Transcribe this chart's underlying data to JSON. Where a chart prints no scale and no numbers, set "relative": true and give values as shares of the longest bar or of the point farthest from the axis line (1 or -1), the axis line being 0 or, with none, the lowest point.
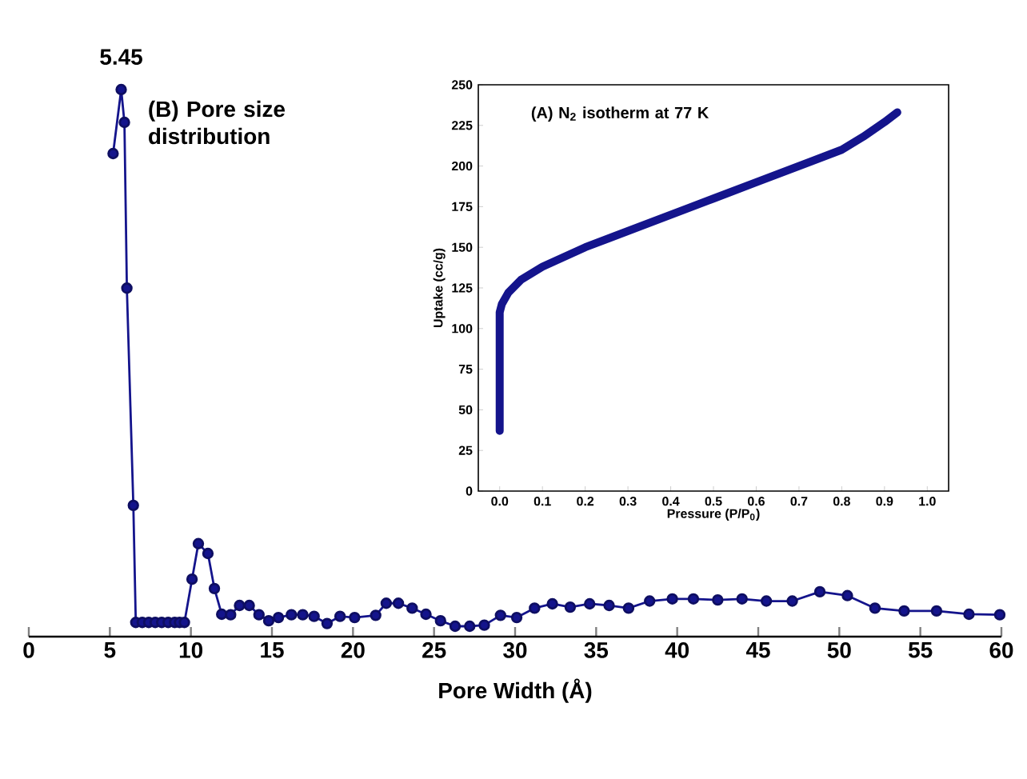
{
  "chart_data": [
    {
      "type": "line",
      "title": "(B) Pore size distribution",
      "xlabel": "Pore Width (Å)",
      "relative": true,
      "marker": "circle",
      "line_style": "solid",
      "annotations": [
        {
          "text": "5.45",
          "x": 5.7,
          "y": 1.0
        }
      ],
      "xlim": [
        0,
        60
      ],
      "xticks": [
        0,
        5,
        10,
        15,
        20,
        25,
        30,
        35,
        40,
        45,
        50,
        55,
        60
      ],
      "series": [
        {
          "color": "#14148c",
          "x": [
            5.2,
            5.7,
            5.9,
            6.05,
            6.45,
            6.6,
            7.0,
            7.4,
            7.8,
            8.2,
            8.6,
            9.0,
            9.3,
            9.6,
            10.07,
            10.46,
            11.05,
            11.45,
            11.9,
            12.45,
            13.0,
            13.6,
            14.2,
            14.8,
            15.4,
            16.2,
            16.9,
            17.6,
            18.4,
            19.2,
            20.1,
            21.4,
            22.05,
            22.8,
            23.65,
            24.5,
            25.4,
            26.3,
            27.2,
            28.1,
            29.1,
            30.1,
            31.2,
            32.3,
            33.4,
            34.6,
            35.8,
            37.0,
            38.3,
            39.7,
            41.0,
            42.5,
            44.0,
            45.5,
            47.1,
            48.8,
            50.5,
            52.2,
            54.0,
            56.0,
            58.0,
            59.9
          ],
          "values": [
            0.883,
            1.0,
            0.94,
            0.637,
            0.24,
            0.026,
            0.026,
            0.026,
            0.026,
            0.026,
            0.026,
            0.026,
            0.026,
            0.026,
            0.105,
            0.17,
            0.152,
            0.088,
            0.041,
            0.04,
            0.057,
            0.057,
            0.04,
            0.029,
            0.035,
            0.04,
            0.04,
            0.037,
            0.024,
            0.037,
            0.035,
            0.039,
            0.061,
            0.061,
            0.052,
            0.041,
            0.029,
            0.019,
            0.019,
            0.021,
            0.039,
            0.035,
            0.052,
            0.06,
            0.054,
            0.06,
            0.057,
            0.052,
            0.065,
            0.069,
            0.069,
            0.067,
            0.069,
            0.065,
            0.065,
            0.082,
            0.075,
            0.052,
            0.047,
            0.047,
            0.041,
            0.04
          ]
        }
      ]
    },
    {
      "type": "line",
      "title": "(A) N$_{2}$ isotherm at 77 K",
      "xlabel": "Pressure (P/P$_{0}$)",
      "ylabel": "Uptake (cc/g)",
      "marker": "none",
      "line_style": "solid",
      "xlim": [
        -0.05,
        1.05
      ],
      "ylim": [
        0,
        250
      ],
      "xticks": [
        {
          "value": 0,
          "label": "0.0"
        },
        0.1,
        0.2,
        0.3,
        0.4,
        0.5,
        0.6,
        0.7,
        0.8,
        0.9,
        {
          "value": 1,
          "label": "1.0"
        }
      ],
      "yticks": [
        0,
        25,
        50,
        75,
        100,
        125,
        150,
        175,
        200,
        225,
        250
      ],
      "series": [
        {
          "color": "#14148c",
          "x": [
            0.0,
            0.0,
            0.0,
            0.0,
            0.0,
            0.005,
            0.02,
            0.05,
            0.1,
            0.2,
            0.3,
            0.4,
            0.5,
            0.6,
            0.7,
            0.8,
            0.85,
            0.9,
            0.93
          ],
          "values": [
            37,
            50,
            75,
            100,
            110,
            115,
            122,
            130,
            138,
            150,
            160,
            170,
            180,
            190,
            200,
            210,
            218,
            227,
            233
          ]
        }
      ]
    }
  ]
}
